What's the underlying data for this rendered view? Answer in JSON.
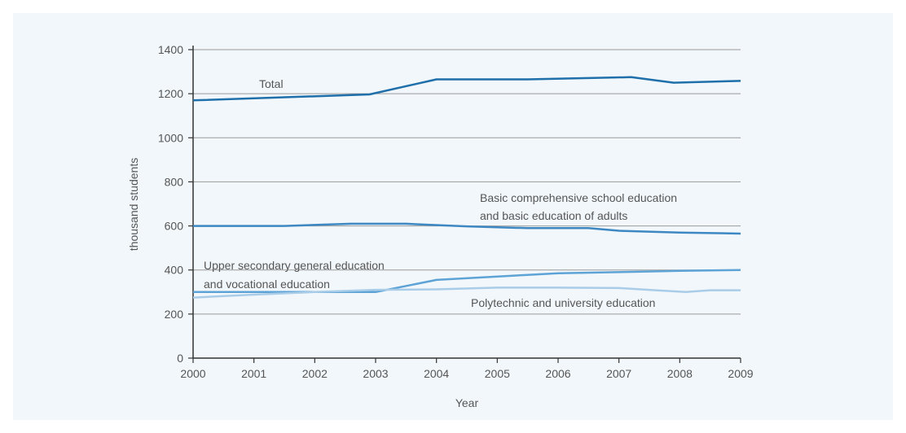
{
  "chart_data": {
    "type": "line",
    "xlabel": "Year",
    "ylabel": "thousand students",
    "x": [
      2000,
      2001,
      2002,
      2003,
      2004,
      2005,
      2006,
      2007,
      2008,
      2009
    ],
    "xlim": [
      2000,
      2009
    ],
    "ylim": [
      0,
      1400
    ],
    "yticks": [
      0,
      200,
      400,
      600,
      800,
      1000,
      1200,
      1400
    ],
    "grid": "horizontal",
    "series": [
      {
        "key": "total",
        "label_lines": [
          "Total"
        ],
        "color": "#1f6faa",
        "points": [
          [
            2000,
            1170
          ],
          [
            2002.9,
            1197
          ],
          [
            2004,
            1265
          ],
          [
            2005.5,
            1265
          ],
          [
            2007.2,
            1275
          ],
          [
            2007.9,
            1250
          ],
          [
            2009,
            1258
          ]
        ]
      },
      {
        "key": "basic",
        "label_lines": [
          "Basic comprehensive school education",
          "and basic education of adults"
        ],
        "color": "#3d88c2",
        "points": [
          [
            2000,
            600
          ],
          [
            2001.5,
            600
          ],
          [
            2002.6,
            610
          ],
          [
            2003.5,
            610
          ],
          [
            2004.5,
            598
          ],
          [
            2005.5,
            590
          ],
          [
            2006.5,
            590
          ],
          [
            2007,
            578
          ],
          [
            2008,
            570
          ],
          [
            2009,
            565
          ]
        ]
      },
      {
        "key": "upper",
        "label_lines": [
          "Upper secondary general education",
          "and vocational education"
        ],
        "color": "#5ea3d6",
        "points": [
          [
            2000,
            300
          ],
          [
            2003,
            300
          ],
          [
            2004,
            355
          ],
          [
            2005.5,
            378
          ],
          [
            2006,
            385
          ],
          [
            2007.3,
            392
          ],
          [
            2008,
            396
          ],
          [
            2009,
            400
          ]
        ]
      },
      {
        "key": "poly",
        "label_lines": [
          "Polytechnic and university education"
        ],
        "color": "#a9cde9",
        "points": [
          [
            2000,
            275
          ],
          [
            2001,
            288
          ],
          [
            2002,
            300
          ],
          [
            2003,
            310
          ],
          [
            2004,
            312
          ],
          [
            2005,
            320
          ],
          [
            2006,
            320
          ],
          [
            2007,
            318
          ],
          [
            2007.6,
            308
          ],
          [
            2008.1,
            300
          ],
          [
            2008.5,
            308
          ],
          [
            2009,
            308
          ]
        ]
      }
    ]
  }
}
